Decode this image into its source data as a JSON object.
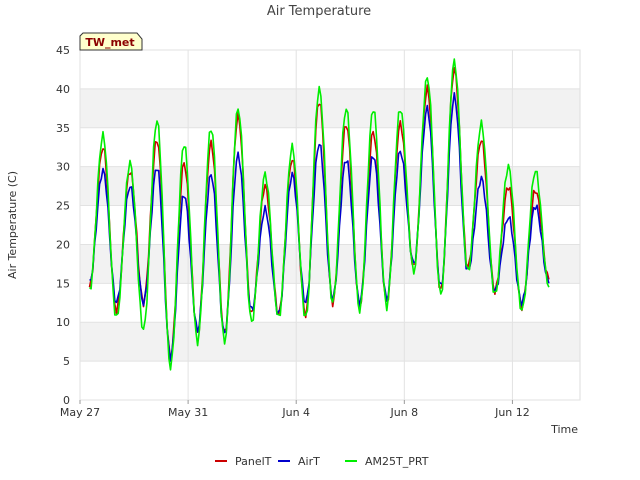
{
  "chart_data": {
    "type": "line",
    "title": "Air Temperature",
    "xlabel": "Time",
    "ylabel": "Air Temperature (C)",
    "badge": "TW_met",
    "ylim": [
      0,
      45
    ],
    "yticks": [
      0,
      5,
      10,
      15,
      20,
      25,
      30,
      35,
      40,
      45
    ],
    "xlim_days": [
      0,
      18.5
    ],
    "xticks": [
      {
        "day": 0,
        "label": "May 27"
      },
      {
        "day": 4,
        "label": "May 31"
      },
      {
        "day": 8,
        "label": "Jun 4"
      },
      {
        "day": 12,
        "label": "Jun 8"
      },
      {
        "day": 16,
        "label": "Jun 12"
      }
    ],
    "grid": true,
    "legend_position": "bottom",
    "daily_extremes": {
      "note_days_from_may27": [
        0.35,
        0.85,
        1.35,
        1.85,
        2.35,
        2.85,
        3.35,
        3.85,
        4.35,
        4.85,
        5.35,
        5.85,
        6.35,
        6.85,
        7.35,
        7.85,
        8.35,
        8.85,
        9.35,
        9.85,
        10.35,
        10.85,
        11.35,
        11.85,
        12.35,
        12.85,
        13.35,
        13.85,
        14.35,
        14.85,
        15.35,
        15.85,
        16.35,
        16.85,
        17.35
      ],
      "series": [
        {
          "name": "PanelT",
          "color": "#cc0000",
          "values": [
            14.5,
            32.5,
            11.5,
            29.5,
            12.5,
            33.5,
            5.5,
            30.5,
            8.5,
            33,
            8.5,
            36.5,
            11,
            27.5,
            11,
            31,
            11,
            38.5,
            12.5,
            35.5,
            12,
            34.5,
            12.5,
            35.5,
            17,
            40,
            14,
            42.5,
            17,
            33.5,
            14,
            27.5,
            12,
            27,
            15.5
          ]
        },
        {
          "name": "AirT",
          "color": "#0000cc",
          "values": [
            15,
            29.5,
            12.5,
            27.5,
            12.5,
            30,
            5.5,
            26.5,
            9,
            29,
            8.5,
            31.5,
            11.5,
            24.5,
            11,
            29,
            12.5,
            33,
            13,
            31,
            12.5,
            31.5,
            13,
            32,
            17.5,
            37.5,
            14.5,
            39,
            16.5,
            28.5,
            14,
            23.5,
            12.5,
            25,
            15
          ]
        },
        {
          "name": "AM25T_PRT",
          "color": "#00ee00",
          "values": [
            14,
            34,
            10.5,
            30.5,
            9,
            36,
            4.2,
            33,
            7.5,
            35,
            7.5,
            37.5,
            10,
            29,
            10.5,
            32.5,
            10.5,
            40,
            12.5,
            37.5,
            11.5,
            37.5,
            12,
            37.5,
            16.5,
            41.5,
            13.5,
            43.5,
            16.5,
            35.5,
            13.5,
            30,
            11.5,
            29.5,
            14.5
          ]
        }
      ]
    }
  }
}
